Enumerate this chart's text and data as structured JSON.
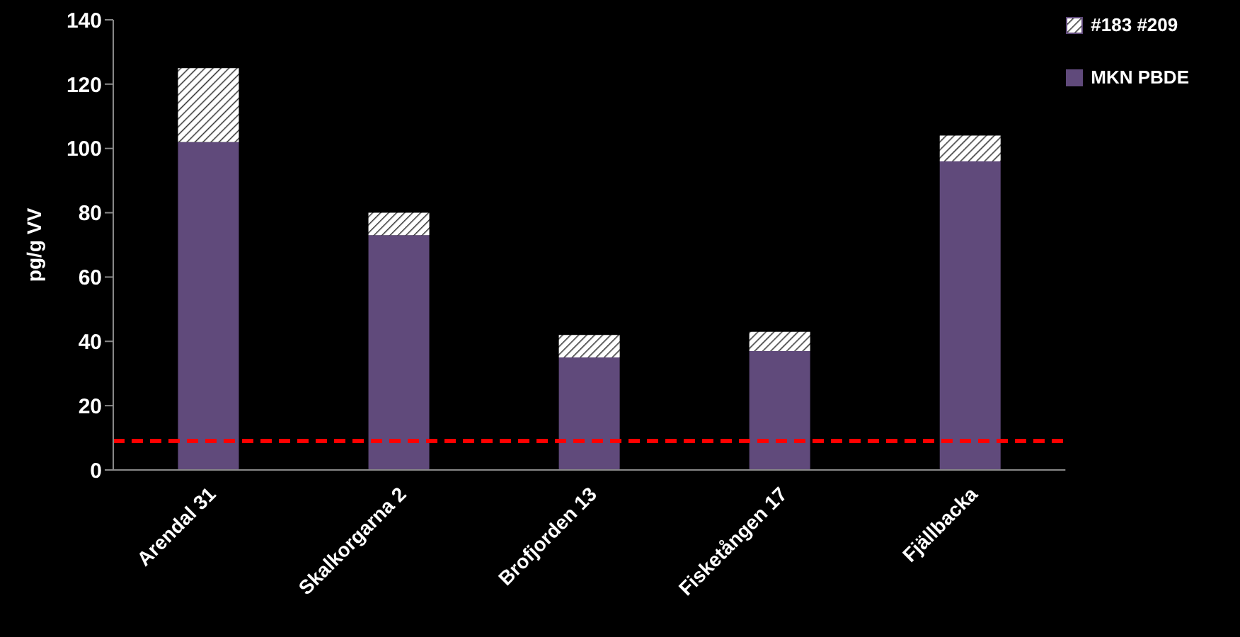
{
  "chart_data": {
    "type": "bar",
    "stacked": true,
    "ylabel": "pg/g VV",
    "categories": [
      "Arendal 31",
      "Skalkorgarna 2",
      "Brofjorden 13",
      "Fisketången 17",
      "Fjällbacka"
    ],
    "series": [
      {
        "name": "MKN PBDE",
        "color": "#604a7b",
        "values": [
          102,
          73,
          35,
          37,
          96
        ]
      },
      {
        "name": "#183 #209",
        "color": "#ffffff",
        "values": [
          23,
          7,
          7,
          6,
          8
        ]
      }
    ],
    "ylim": [
      0,
      140
    ],
    "yticks": [
      0,
      20,
      40,
      60,
      80,
      100,
      120,
      140
    ],
    "ref_lines": [
      {
        "axis": "y",
        "value": 9,
        "color": "#ff0000",
        "line_style": "dashed"
      }
    ],
    "legend": "top right",
    "grid": false
  }
}
